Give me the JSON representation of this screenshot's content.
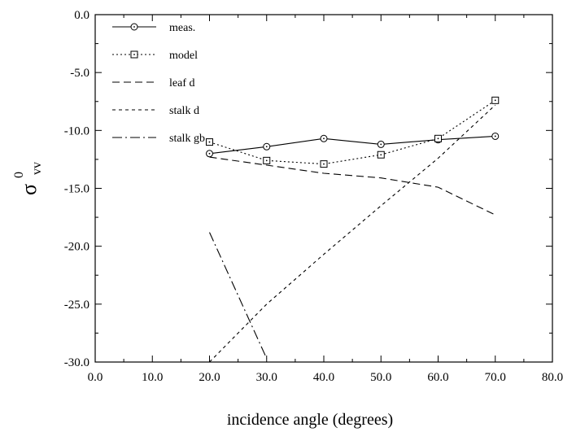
{
  "chart_data": {
    "type": "line",
    "title": "",
    "xlabel": "incidence angle (degrees)",
    "ylabel_main": "σ",
    "ylabel_sup": "0",
    "ylabel_sub": "vv",
    "xlim": [
      0,
      80
    ],
    "ylim": [
      -30,
      0
    ],
    "x_ticks": [
      0,
      10,
      20,
      30,
      40,
      50,
      60,
      70,
      80
    ],
    "y_ticks": [
      0,
      -5,
      -10,
      -15,
      -20,
      -25,
      -30
    ],
    "x_tick_labels": [
      "0.0",
      "10.0",
      "20.0",
      "30.0",
      "40.0",
      "50.0",
      "60.0",
      "70.0",
      "80.0"
    ],
    "y_tick_labels": [
      "0.0",
      "-5.0",
      "-10.0",
      "-15.0",
      "-20.0",
      "-25.0",
      "-30.0"
    ],
    "grid": false,
    "legend_position": "top-left",
    "series": [
      {
        "name": "meas.",
        "dash": "solid",
        "marker": "circle-dot",
        "x": [
          20,
          30,
          40,
          50,
          60,
          70
        ],
        "y": [
          -12.0,
          -11.4,
          -10.7,
          -11.2,
          -10.8,
          -10.5
        ]
      },
      {
        "name": "model",
        "dash": "dotted",
        "marker": "square-dot",
        "x": [
          20,
          30,
          40,
          50,
          60,
          70
        ],
        "y": [
          -11.0,
          -12.6,
          -12.9,
          -12.1,
          -10.7,
          -7.4
        ]
      },
      {
        "name": "leaf d",
        "dash": "dashed",
        "marker": "none",
        "x": [
          20,
          30,
          40,
          50,
          60,
          70
        ],
        "y": [
          -12.3,
          -13.0,
          -13.7,
          -14.1,
          -14.9,
          -17.3
        ]
      },
      {
        "name": "stalk d",
        "dash": "short-dashed",
        "marker": "none",
        "x": [
          20,
          30,
          40,
          50,
          60,
          70
        ],
        "y": [
          -30.0,
          -25.0,
          -20.7,
          -16.5,
          -12.4,
          -7.8
        ]
      },
      {
        "name": "stalk gb",
        "dash": "dash-dot",
        "marker": "none",
        "x": [
          20,
          30
        ],
        "y": [
          -18.8,
          -29.7
        ]
      }
    ]
  }
}
